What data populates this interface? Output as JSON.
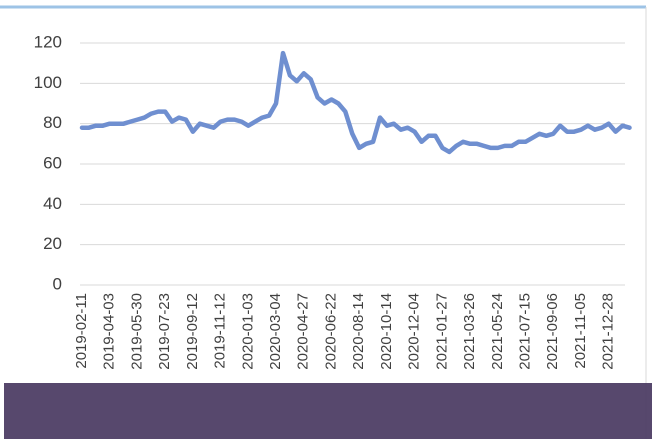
{
  "chart_data": {
    "type": "line",
    "categories": [
      "2019-02-11",
      null,
      null,
      null,
      "2019-04-03",
      null,
      null,
      null,
      "2019-05-30",
      null,
      null,
      null,
      "2019-07-23",
      null,
      null,
      null,
      "2019-09-12",
      null,
      null,
      null,
      "2019-11-12",
      null,
      null,
      null,
      "2020-01-03",
      null,
      null,
      null,
      "2020-03-04",
      null,
      null,
      null,
      "2020-04-27",
      null,
      null,
      null,
      "2020-06-22",
      null,
      null,
      null,
      "2020-08-14",
      null,
      null,
      null,
      "2020-10-14",
      null,
      null,
      null,
      "2020-12-04",
      null,
      null,
      null,
      "2021-01-27",
      null,
      null,
      null,
      "2021-03-26",
      null,
      null,
      null,
      "2021-05-24",
      null,
      null,
      null,
      "2021-07-15",
      null,
      null,
      null,
      "2021-09-06",
      null,
      null,
      null,
      "2021-11-05",
      null,
      null,
      null,
      "2021-12-28",
      null,
      null,
      null
    ],
    "series": [
      {
        "color": "#6f8fd0",
        "values": [
          78,
          78,
          79,
          79,
          80,
          80,
          80,
          81,
          82,
          83,
          85,
          86,
          86,
          81,
          83,
          82,
          76,
          80,
          79,
          78,
          81,
          82,
          82,
          81,
          79,
          81,
          83,
          84,
          90,
          115,
          104,
          101,
          105,
          102,
          93,
          90,
          92,
          90,
          86,
          75,
          68,
          70,
          71,
          83,
          79,
          80,
          77,
          78,
          76,
          71,
          74,
          74,
          68,
          66,
          69,
          71,
          70,
          70,
          69,
          68,
          68,
          69,
          69,
          71,
          71,
          73,
          75,
          74,
          75,
          79,
          76,
          76,
          77,
          79,
          77,
          78,
          80,
          76,
          79,
          78
        ]
      }
    ],
    "ylim": [
      0,
      120
    ],
    "yticks": [
      0,
      20,
      40,
      60,
      80,
      100,
      120
    ],
    "grid": true
  }
}
